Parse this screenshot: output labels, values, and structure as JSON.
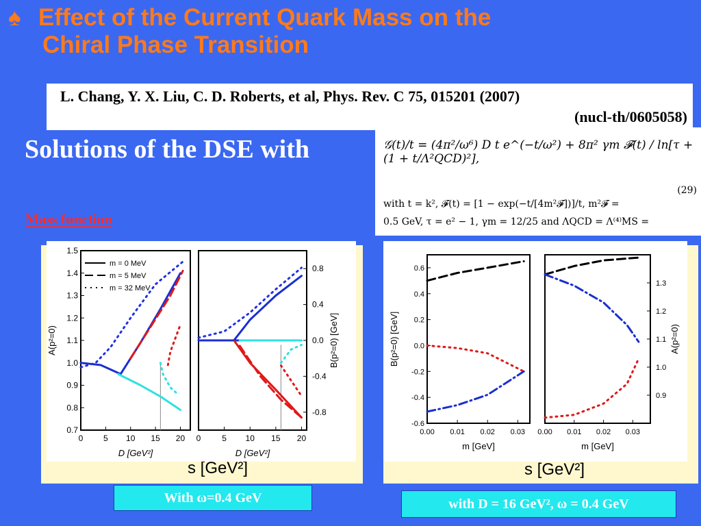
{
  "slide": {
    "title_icon": "spade-icon",
    "title_line1": "Effect of the Current Quark Mass on the",
    "title_line2": "Chiral Phase Transition",
    "reference_line1": "L. Chang, Y. X. Liu, C. D. Roberts, et al,  Phys. Rev. C 75, 015201 (2007)",
    "reference_line2": "(nucl-th/0605058)",
    "solutions_heading": "Solutions of the DSE with",
    "mass_function_link": "Mass function",
    "equation": {
      "main": "𝒢(t)/t = (4π²/ω⁶) D t e^(−t/ω²) + 8π² γm 𝓕(t) / ln[τ + (1 + t/Λ²QCD)²],",
      "number": "(29)",
      "line2": "with  t = k²,  𝓕(t) = [1 − exp(−t/[4m²𝓕])]/t,  m²𝓕 =",
      "line3": "0.5 GeV,  τ = e² − 1,  γm = 12/25 and ΛQCD = Λ⁽⁴⁾MS ="
    },
    "tan_label_left": "s  [GeV²]",
    "tan_label_right": "s  [GeV²]",
    "caption_left": "With ω=0.4 GeV",
    "caption_right": "with  D = 16 GeV², ω = 0.4 GeV"
  },
  "chart_data": [
    {
      "type": "line",
      "xlabel": "D [GeV²]",
      "ylabel": "A(p²=0)",
      "xlim": [
        0,
        22
      ],
      "ylim": [
        0.7,
        1.5
      ],
      "xticks": [
        0,
        5,
        10,
        15,
        20
      ],
      "yticks": [
        0.7,
        0.8,
        0.9,
        1.0,
        1.1,
        1.2,
        1.3,
        1.4,
        1.5
      ],
      "legend": [
        "m = 0 MeV",
        "m = 5 MeV",
        "m = 32 MeV"
      ],
      "legend_position": "top-left",
      "colors": {
        "m0": "#1a2fd0",
        "m5": "#e01818",
        "m32": "#2030e0",
        "cyan": "#30e0e0",
        "gray": "#8a8a8a"
      },
      "series": [
        {
          "name": "m = 0 MeV",
          "style": "solid",
          "x": [
            0,
            4,
            8
          ],
          "y": [
            1.0,
            0.99,
            0.95
          ]
        },
        {
          "style": "solid",
          "x": [
            8,
            12,
            16,
            20
          ],
          "y": [
            0.95,
            1.09,
            1.24,
            1.4
          ]
        },
        {
          "name": "m = 5 MeV",
          "style": "dashed",
          "x": [
            10,
            14,
            18,
            20.5
          ],
          "y": [
            1.02,
            1.16,
            1.3,
            1.41
          ]
        },
        {
          "name": "m = 32 MeV",
          "style": "dotted",
          "x": [
            0,
            3,
            6,
            10,
            15,
            21
          ],
          "y": [
            0.98,
            1.0,
            1.07,
            1.2,
            1.35,
            1.46
          ]
        },
        {
          "style": "solid",
          "x": [
            7.5,
            12,
            16,
            20
          ],
          "y": [
            0.95,
            0.9,
            0.85,
            0.79
          ]
        },
        {
          "style": "dotted",
          "x": [
            16,
            16.5,
            18,
            19.5
          ],
          "y": [
            1.0,
            0.95,
            0.89,
            0.86
          ]
        },
        {
          "style": "dotted",
          "x": [
            17.5,
            18,
            19,
            20
          ],
          "y": [
            0.99,
            1.05,
            1.11,
            1.17
          ]
        }
      ],
      "marker_x": 16
    },
    {
      "type": "line",
      "xlabel": "D [GeV²]",
      "ylabel": "B(p²=0) [GeV]",
      "xlim": [
        0,
        21
      ],
      "ylim": [
        -1.0,
        1.0
      ],
      "xticks": [
        0,
        5,
        10,
        15,
        20
      ],
      "yticks": [
        -0.8,
        -0.4,
        0.0,
        0.4,
        0.8
      ],
      "series": [
        {
          "style": "solid",
          "x": [
            0,
            6,
            8
          ],
          "y": [
            0.0,
            0.0,
            0.0
          ]
        },
        {
          "style": "solid",
          "x": [
            7,
            10,
            15,
            20
          ],
          "y": [
            0.01,
            0.23,
            0.5,
            0.72
          ]
        },
        {
          "style": "dotted",
          "x": [
            0,
            5,
            10,
            15,
            20
          ],
          "y": [
            0.03,
            0.1,
            0.31,
            0.57,
            0.81
          ]
        },
        {
          "style": "solid",
          "x": [
            7,
            10,
            15,
            20
          ],
          "y": [
            -0.01,
            -0.25,
            -0.55,
            -0.86
          ]
        },
        {
          "style": "dashed",
          "x": [
            8,
            12,
            16,
            20
          ],
          "y": [
            -0.06,
            -0.4,
            -0.66,
            -0.86
          ]
        },
        {
          "style": "solid",
          "x": [
            8,
            14,
            20
          ],
          "y": [
            0.0,
            0.0,
            0.0
          ]
        },
        {
          "style": "dotted",
          "x": [
            16,
            18,
            20
          ],
          "y": [
            -0.28,
            -0.45,
            -0.62
          ]
        },
        {
          "style": "dotted",
          "x": [
            16,
            18,
            20
          ],
          "y": [
            -0.25,
            -0.1,
            -0.05
          ]
        }
      ],
      "marker_x": 16
    },
    {
      "type": "line",
      "xlabel": "m [GeV]",
      "ylabel": "B(p²=0) [GeV]",
      "xlim": [
        0,
        0.034
      ],
      "ylim": [
        -0.6,
        0.7
      ],
      "xticks": [
        0.0,
        0.01,
        0.02,
        0.03
      ],
      "yticks": [
        -0.6,
        -0.4,
        -0.2,
        0.0,
        0.2,
        0.4,
        0.6
      ],
      "series": [
        {
          "style": "dashed",
          "x": [
            0,
            0.01,
            0.02,
            0.032
          ],
          "y": [
            0.5,
            0.56,
            0.6,
            0.65
          ]
        },
        {
          "style": "dotted",
          "x": [
            0,
            0.01,
            0.02,
            0.032
          ],
          "y": [
            0.0,
            -0.02,
            -0.06,
            -0.2
          ]
        },
        {
          "style": "dashdot",
          "x": [
            0,
            0.01,
            0.02,
            0.032
          ],
          "y": [
            -0.51,
            -0.46,
            -0.38,
            -0.2
          ]
        }
      ]
    },
    {
      "type": "line",
      "xlabel": "m [GeV]",
      "ylabel": "A(p²=0)",
      "xlim": [
        0,
        0.036
      ],
      "ylim": [
        0.8,
        1.4
      ],
      "xticks": [
        0.0,
        0.01,
        0.02,
        0.03
      ],
      "yticks": [
        0.9,
        1.0,
        1.1,
        1.2,
        1.3
      ],
      "series": [
        {
          "style": "dashed",
          "x": [
            0,
            0.01,
            0.02,
            0.032
          ],
          "y": [
            1.33,
            1.36,
            1.38,
            1.39
          ]
        },
        {
          "style": "dashdot",
          "x": [
            0,
            0.01,
            0.02,
            0.028,
            0.032
          ],
          "y": [
            1.33,
            1.29,
            1.23,
            1.15,
            1.09
          ]
        },
        {
          "style": "dotted",
          "x": [
            0,
            0.01,
            0.02,
            0.028,
            0.032
          ],
          "y": [
            0.82,
            0.83,
            0.87,
            0.94,
            1.03
          ]
        }
      ]
    }
  ]
}
